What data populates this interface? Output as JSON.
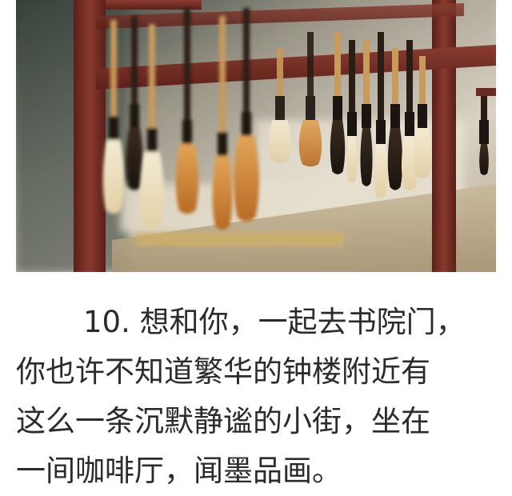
{
  "image": {
    "subject": "brush-rack-photo"
  },
  "article": {
    "lines": [
      "10. 想和你，一起去书院门，",
      "你也许不知道繁华的钟楼附近有",
      "这么一条沉默静谧的小街，坐在",
      "一间咖啡厅，闻墨品画。"
    ]
  },
  "colors": {
    "text": "#2b2b2b",
    "rack_wood": "#7a2e24",
    "background": "#ffffff"
  }
}
